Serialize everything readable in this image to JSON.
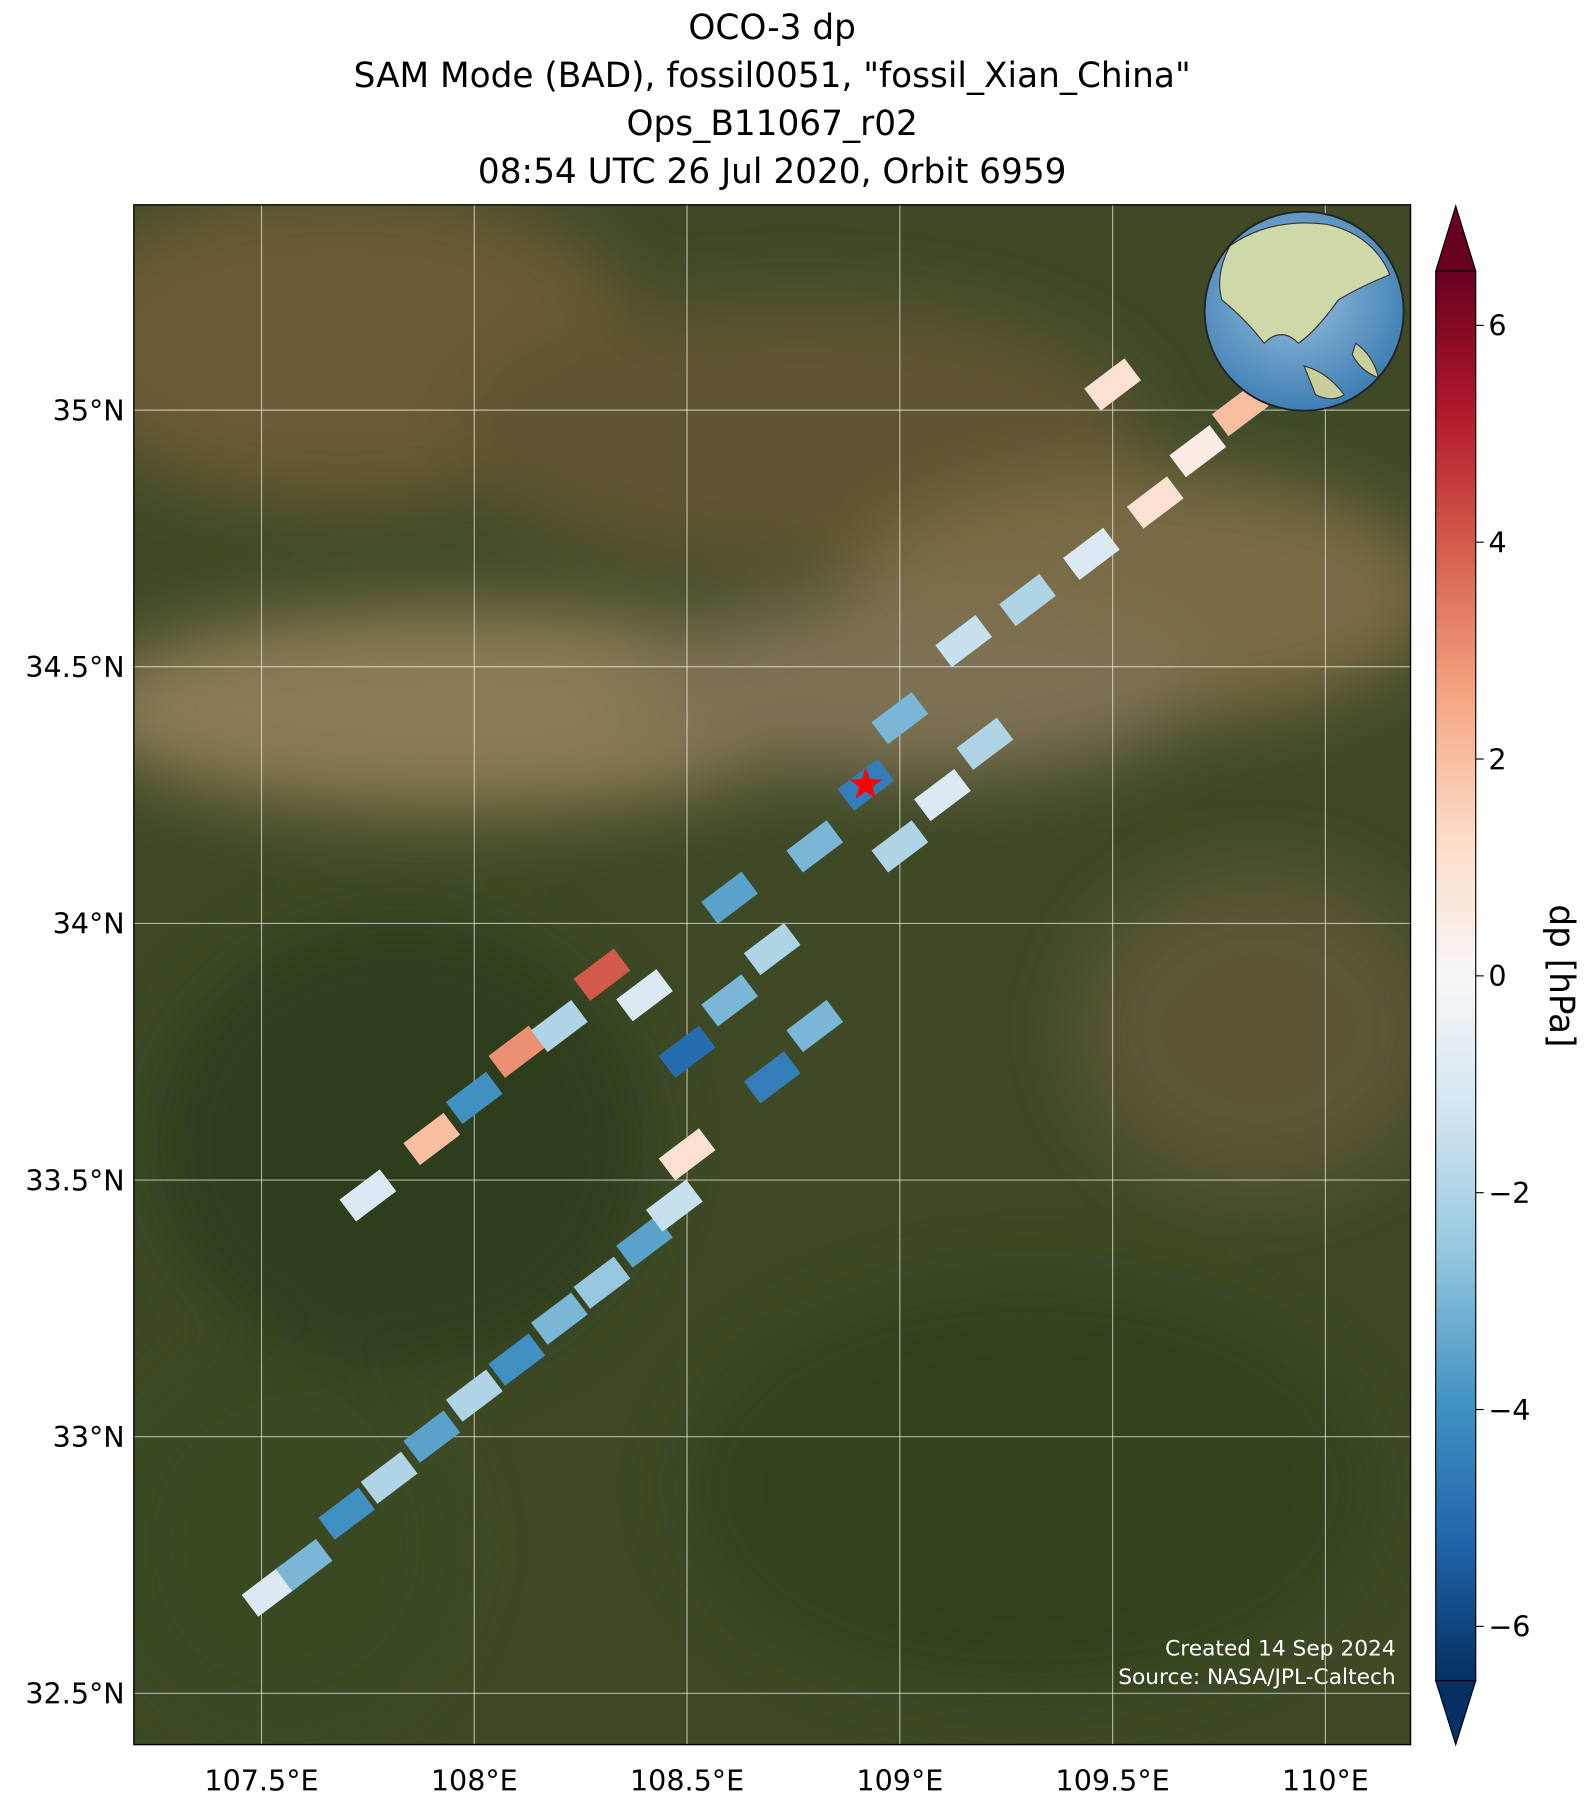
{
  "chart_data": {
    "type": "map",
    "title": [
      "OCO-3 dp",
      "SAM Mode (BAD), fossil0051, \"fossil_Xian_China\"",
      "Ops_B11067_r02",
      "08:54 UTC 26 Jul 2020, Orbit 6959"
    ],
    "xlim": [
      107.2,
      110.2
    ],
    "ylim": [
      32.4,
      35.4
    ],
    "xticks": [
      {
        "value": 107.5,
        "label": "107.5°E"
      },
      {
        "value": 108,
        "label": "108°E"
      },
      {
        "value": 108.5,
        "label": "108.5°E"
      },
      {
        "value": 109,
        "label": "109°E"
      },
      {
        "value": 109.5,
        "label": "109.5°E"
      },
      {
        "value": 110,
        "label": "110°E"
      }
    ],
    "yticks": [
      {
        "value": 32.5,
        "label": "32.5°N"
      },
      {
        "value": 33,
        "label": "33°N"
      },
      {
        "value": 33.5,
        "label": "33.5°N"
      },
      {
        "value": 34,
        "label": "34°N"
      },
      {
        "value": 34.5,
        "label": "34.5°N"
      },
      {
        "value": 35,
        "label": "35°N"
      }
    ],
    "grid": true,
    "colorbar": {
      "label": "dp [hPa]",
      "clim": [
        -6.5,
        6.5
      ],
      "ticks": [
        {
          "value": -6,
          "label": "−6"
        },
        {
          "value": -4,
          "label": "−4"
        },
        {
          "value": -2,
          "label": "−2"
        },
        0,
        2,
        4,
        6
      ],
      "colors": [
        "#053061",
        "#2166ac",
        "#4393c3",
        "#92c5de",
        "#d1e5f0",
        "#f7f7f7",
        "#fddbc7",
        "#f4a582",
        "#d6604d",
        "#b2182b",
        "#67001f"
      ]
    },
    "footprints": {
      "lon": [
        107.52,
        107.6,
        107.7,
        107.8,
        107.9,
        108.0,
        108.1,
        108.2,
        108.3,
        108.4,
        108.47,
        107.75,
        107.9,
        108.0,
        108.1,
        108.2,
        108.3,
        108.4,
        108.5,
        108.6,
        108.5,
        108.7,
        108.8,
        108.7,
        108.6,
        108.8,
        108.92,
        109.0,
        109.1,
        109.2,
        109.0,
        109.15,
        109.3,
        109.45,
        109.6,
        109.7,
        109.8,
        109.5
      ],
      "lat": [
        32.7,
        32.75,
        32.85,
        32.92,
        33.0,
        33.08,
        33.15,
        33.23,
        33.3,
        33.38,
        33.45,
        33.47,
        33.58,
        33.66,
        33.75,
        33.8,
        33.9,
        33.86,
        33.75,
        33.85,
        33.55,
        33.7,
        33.8,
        33.95,
        34.05,
        34.15,
        34.27,
        34.15,
        34.25,
        34.35,
        34.4,
        34.55,
        34.63,
        34.72,
        34.82,
        34.92,
        35.0,
        35.05
      ],
      "dp": [
        -1,
        -3,
        -4,
        -2,
        -3.5,
        -2,
        -4,
        -3,
        -2.5,
        -3.5,
        -1.5,
        -1,
        2,
        -4,
        3,
        -2,
        4,
        -1,
        -5,
        -3,
        1,
        -4.5,
        -3,
        -2,
        -3.5,
        -3,
        -4.5,
        -2,
        -1,
        -2,
        -3,
        -1.5,
        -2,
        -1,
        1,
        0.5,
        2,
        1
      ]
    },
    "target": {
      "lon": 108.92,
      "lat": 34.27
    },
    "annotations": [
      "Created 14 Sep 2024",
      "Source: NASA/JPL-Caltech"
    ]
  }
}
